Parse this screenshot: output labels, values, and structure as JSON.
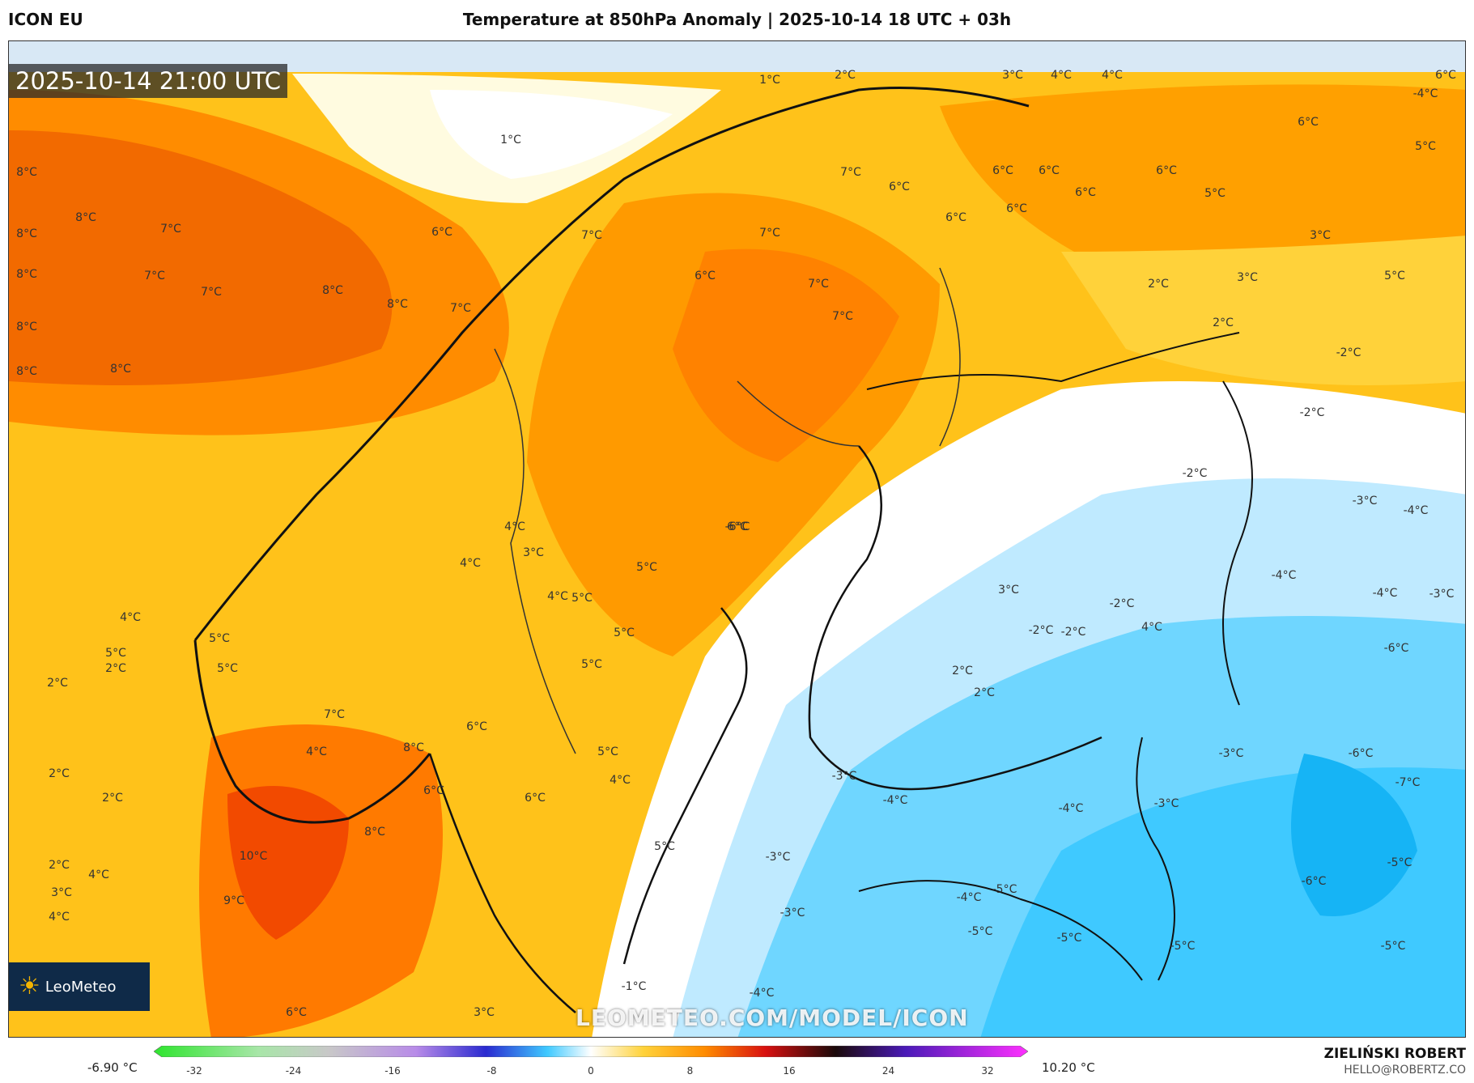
{
  "header": {
    "model": "ICON EU",
    "title": "Temperature at 850hPa Anomaly | 2025-10-14 18 UTC + 03h"
  },
  "map": {
    "timestamp": "2025-10-14 21:00 UTC",
    "watermark": "LEOMETEO.COM/MODEL/ICON",
    "logo_text": "LeoMeteo",
    "labels": [
      "1°C",
      "2°C",
      "3°C",
      "4°C",
      "4°C",
      "6°C",
      "1°C",
      "8°C",
      "8°C",
      "8°C",
      "8°C",
      "7°C",
      "8°C",
      "7°C",
      "8°C",
      "8°C",
      "7°C",
      "8°C",
      "8°C",
      "7°C",
      "6°C",
      "7°C",
      "6°C",
      "7°C",
      "7°C",
      "7°C",
      "6°C",
      "7°C",
      "6°C",
      "6°C",
      "6°C",
      "6°C",
      "6°C",
      "6°C",
      "5°C",
      "6°C",
      "5°C",
      "3°C",
      "3°C",
      "5°C",
      "2°C",
      "2°C",
      "-2°C",
      "-2°C",
      "-2°C",
      "-3°C",
      "-4°C",
      "-4°C",
      "-4°C",
      "-3°C",
      "-6°C",
      "-6°C",
      "-7°C",
      "-5°C",
      "-6°C",
      "-5°C",
      "-5°C",
      "-5°C",
      "-5°C",
      "-4°C",
      "-3°C",
      "-3°C",
      "-4°C",
      "-3°C",
      "-1°C",
      "-4°C",
      "-5°C",
      "3°C",
      "6°C",
      "9°C",
      "10°C",
      "8°C",
      "8°C",
      "6°C",
      "7°C",
      "6°C",
      "4°C",
      "5°C",
      "4°C",
      "2°C",
      "2°C",
      "2°C",
      "2°C",
      "2°C",
      "3°C",
      "4°C",
      "4°C",
      "5°C",
      "5°C",
      "5°C",
      "4°C",
      "4°C",
      "5°C",
      "5°C",
      "3°C",
      "4°C",
      "5°C",
      "4°C",
      "5°C",
      "6°C",
      "5°C",
      "4°C",
      "-2°C",
      "-2°C",
      "-2°C",
      "2°C",
      "2°C",
      "3°C",
      "-3°C",
      "-3°C",
      "-4°C",
      "-4°C",
      "-6°C",
      "6°C"
    ],
    "colors": {
      "warm_dark": "#f24a00",
      "warm_mid": "#ff8c00",
      "warm_light": "#ffc21a",
      "yellow": "#ffe36b",
      "neutral": "#ffffff",
      "cold_light": "#bfeaff",
      "cold_mid": "#3fc9ff",
      "cold_dark": "#16b4f5"
    }
  },
  "colorbar": {
    "min_label": "-6.90 °C",
    "max_label": "10.20 °C",
    "ticks": [
      "-32",
      "-24",
      "-16",
      "-8",
      "0",
      "8",
      "16",
      "24",
      "32"
    ]
  },
  "credits": {
    "author": "ZIELIŃSKI ROBERT",
    "email": "HELLO@ROBERTZ.CO"
  }
}
